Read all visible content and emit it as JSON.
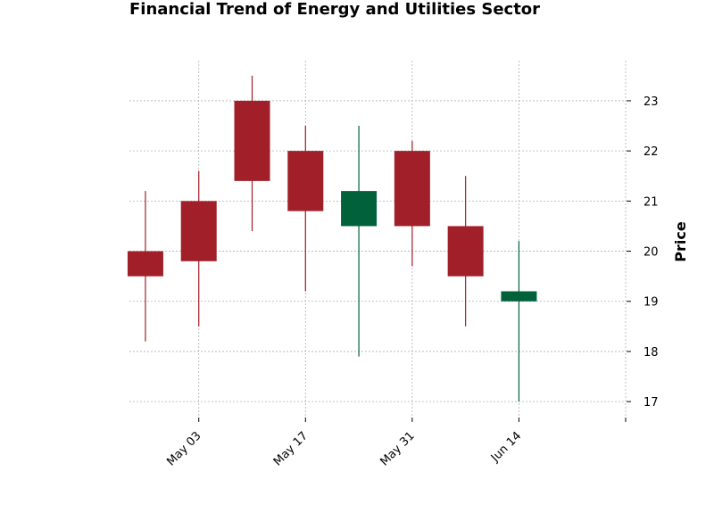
{
  "chart_data": {
    "type": "candlestick",
    "title": "Financial Trend of Energy and Utilities Sector",
    "xlabel": "",
    "ylabel": "Price",
    "y_axis_side": "right",
    "ylim": [
      16.7,
      23.8
    ],
    "yticks": [
      17,
      18,
      19,
      20,
      21,
      22,
      23
    ],
    "x_tick_labels": [
      "May 03",
      "May 17",
      "May 31",
      "Jun 14",
      ""
    ],
    "x_tick_index": [
      1,
      3,
      5,
      7,
      9
    ],
    "x_index_range": [
      -0.3,
      9
    ],
    "grid": true,
    "colors": {
      "up": "#00613a",
      "down": "#a01f28",
      "grid": "#b0b0b0"
    },
    "candles": [
      {
        "date": "2023-05-03",
        "open": 20.0,
        "high": 21.2,
        "low": 18.2,
        "close": 19.5
      },
      {
        "date": "2023-05-10",
        "open": 21.0,
        "high": 21.6,
        "low": 18.5,
        "close": 19.8
      },
      {
        "date": "2023-05-17",
        "open": 23.0,
        "high": 23.5,
        "low": 20.4,
        "close": 21.4
      },
      {
        "date": "2023-05-24",
        "open": 22.0,
        "high": 22.5,
        "low": 19.2,
        "close": 20.8
      },
      {
        "date": "2023-05-31",
        "open": 20.5,
        "high": 22.5,
        "low": 17.9,
        "close": 21.2
      },
      {
        "date": "2023-06-07",
        "open": 22.0,
        "high": 22.2,
        "low": 19.7,
        "close": 20.5
      },
      {
        "date": "2023-06-14",
        "open": 20.5,
        "high": 21.5,
        "low": 18.5,
        "close": 19.5
      },
      {
        "date": "2023-06-21",
        "open": 19.0,
        "high": 20.2,
        "low": 17.0,
        "close": 19.2
      }
    ]
  }
}
